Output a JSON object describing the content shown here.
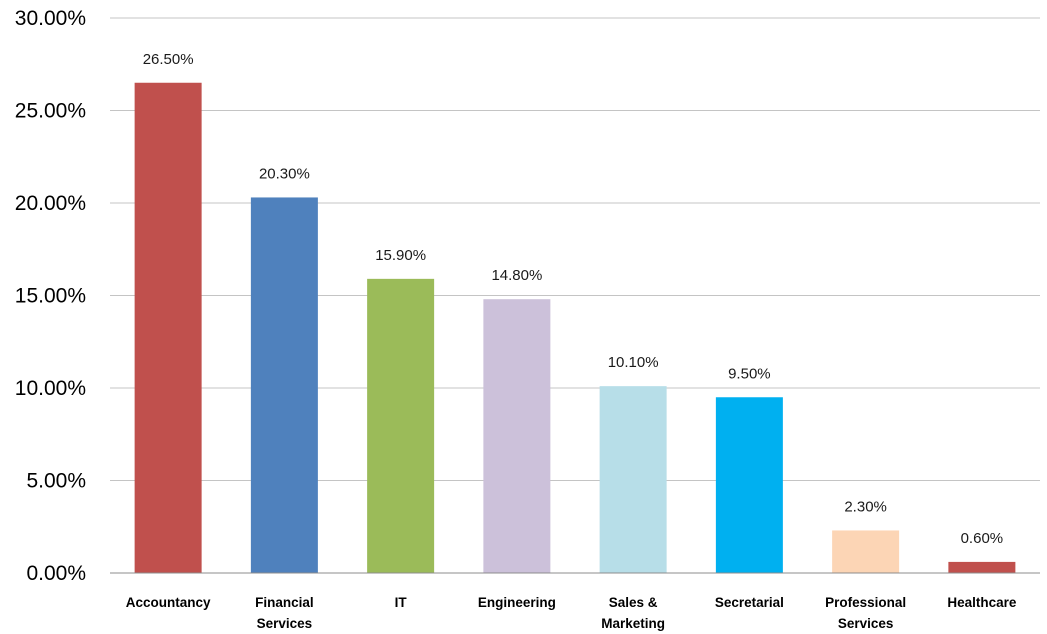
{
  "chart_data": {
    "type": "bar",
    "title": "",
    "xlabel": "",
    "ylabel": "",
    "ylim": [
      0,
      30
    ],
    "y_ticks": [
      "0.00%",
      "5.00%",
      "10.00%",
      "15.00%",
      "20.00%",
      "25.00%",
      "30.00%"
    ],
    "grid": true,
    "categories": [
      "Accountancy",
      "Financial Services",
      "IT",
      "Engineering",
      "Sales & Marketing",
      "Secretarial",
      "Professional Services",
      "Healthcare"
    ],
    "category_lines": [
      [
        "Accountancy"
      ],
      [
        "Financial",
        "Services"
      ],
      [
        "IT"
      ],
      [
        "Engineering"
      ],
      [
        "Sales &",
        "Marketing"
      ],
      [
        "Secretarial"
      ],
      [
        "Professional",
        "Services"
      ],
      [
        "Healthcare"
      ]
    ],
    "values": [
      26.5,
      20.3,
      15.9,
      14.8,
      10.1,
      9.5,
      2.3,
      0.6
    ],
    "data_labels": [
      "26.50%",
      "20.30%",
      "15.90%",
      "14.80%",
      "10.10%",
      "9.50%",
      "2.30%",
      "0.60%"
    ],
    "colors": [
      "#C0504D",
      "#4F81BD",
      "#9BBB59",
      "#CCC1DA",
      "#B7DEE8",
      "#00B0F0",
      "#FCD5B5",
      "#C0504D"
    ]
  }
}
